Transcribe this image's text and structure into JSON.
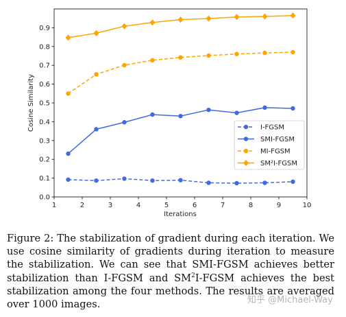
{
  "chart_data": {
    "type": "line",
    "xlabel": "Iterations",
    "ylabel": "Cosine Similarity",
    "xlim": [
      1,
      10
    ],
    "ylim": [
      0.0,
      1.0
    ],
    "xticks": [
      "1",
      "2",
      "3",
      "4",
      "5",
      "6",
      "7",
      "8",
      "9",
      "10"
    ],
    "yticks": [
      "0.0",
      "0.1",
      "0.2",
      "0.3",
      "0.4",
      "0.5",
      "0.6",
      "0.7",
      "0.8",
      "0.9"
    ],
    "grid": false,
    "legend_position": "lower-right",
    "x": [
      1.5,
      2.5,
      3.5,
      4.5,
      5.5,
      6.5,
      7.5,
      8.5,
      9.5
    ],
    "series": [
      {
        "name": "I-FGSM",
        "color": "#4169e1",
        "style": "dashed",
        "values": [
          0.092,
          0.087,
          0.097,
          0.087,
          0.089,
          0.075,
          0.073,
          0.075,
          0.081
        ]
      },
      {
        "name": "SMI-FGSM",
        "color": "#4169e1",
        "style": "solid",
        "values": [
          0.23,
          0.36,
          0.397,
          0.438,
          0.43,
          0.463,
          0.447,
          0.475,
          0.471
        ]
      },
      {
        "name": "MI-FGSM",
        "color": "#ffa500",
        "style": "dashed",
        "values": [
          0.55,
          0.652,
          0.701,
          0.727,
          0.742,
          0.752,
          0.76,
          0.766,
          0.77
        ]
      },
      {
        "name": "SM²I-FGSM",
        "color": "#ffa500",
        "style": "solid",
        "values": [
          0.847,
          0.871,
          0.908,
          0.928,
          0.943,
          0.949,
          0.957,
          0.96,
          0.965
        ]
      }
    ]
  },
  "caption": {
    "label": "Figure 2:",
    "text_part1": "The stabilization of gradient during each iteration. We use cosine similarity of gradients during iteration to measure the stabilization. We can see that SMI-FGSM achieves better stabilization than I-FGSM and SM",
    "sup": "2",
    "text_part2": "I-FGSM achieves the best stabilization among the four methods. The results are averaged over 1000 images."
  },
  "watermark": "知乎 @Michael-Way"
}
